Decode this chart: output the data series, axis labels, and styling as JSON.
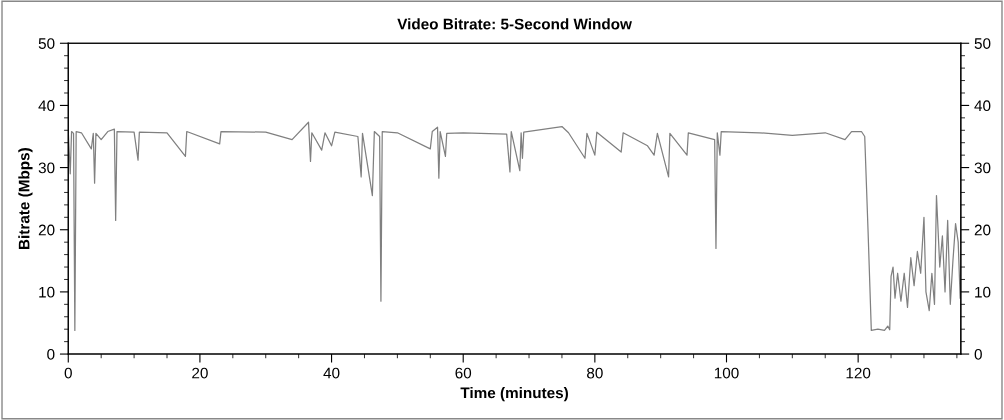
{
  "chart_data": {
    "type": "line",
    "title": "Video Bitrate: 5-Second Window",
    "xlabel": "Time (minutes)",
    "ylabel": "Bitrate (Mbps)",
    "xlim": [
      0,
      135.6
    ],
    "ylim": [
      0,
      50
    ],
    "y2lim": [
      0,
      50
    ],
    "xticks": [
      0,
      {
        "value": 5,
        "label": null
      },
      {
        "value": 10,
        "label": null
      },
      {
        "value": 15,
        "label": null
      },
      20,
      {
        "value": 25,
        "label": null
      },
      {
        "value": 30,
        "label": null
      },
      {
        "value": 35,
        "label": null
      },
      40,
      {
        "value": 45,
        "label": null
      },
      {
        "value": 50,
        "label": null
      },
      {
        "value": 55,
        "label": null
      },
      60,
      {
        "value": 65,
        "label": null
      },
      {
        "value": 70,
        "label": null
      },
      {
        "value": 75,
        "label": null
      },
      80,
      {
        "value": 85,
        "label": null
      },
      {
        "value": 90,
        "label": null
      },
      {
        "value": 95,
        "label": null
      },
      100,
      {
        "value": 105,
        "label": null
      },
      {
        "value": 110,
        "label": null
      },
      {
        "value": 115,
        "label": null
      },
      120,
      {
        "value": 125,
        "label": null
      },
      {
        "value": 130,
        "label": null
      },
      {
        "value": 135,
        "label": null
      }
    ],
    "yticks": [
      0,
      {
        "value": 2,
        "label": null
      },
      {
        "value": 4,
        "label": null
      },
      {
        "value": 6,
        "label": null
      },
      {
        "value": 8,
        "label": null
      },
      10,
      {
        "value": 12,
        "label": null
      },
      {
        "value": 14,
        "label": null
      },
      {
        "value": 16,
        "label": null
      },
      {
        "value": 18,
        "label": null
      },
      20,
      {
        "value": 22,
        "label": null
      },
      {
        "value": 24,
        "label": null
      },
      {
        "value": 26,
        "label": null
      },
      {
        "value": 28,
        "label": null
      },
      30,
      {
        "value": 32,
        "label": null
      },
      {
        "value": 34,
        "label": null
      },
      {
        "value": 36,
        "label": null
      },
      {
        "value": 38,
        "label": null
      },
      40,
      {
        "value": 42,
        "label": null
      },
      {
        "value": 44,
        "label": null
      },
      {
        "value": 46,
        "label": null
      },
      {
        "value": 48,
        "label": null
      },
      50
    ],
    "y2ticks": [
      0,
      {
        "value": 2,
        "label": null
      },
      {
        "value": 4,
        "label": null
      },
      {
        "value": 6,
        "label": null
      },
      {
        "value": 8,
        "label": null
      },
      10,
      {
        "value": 12,
        "label": null
      },
      {
        "value": 14,
        "label": null
      },
      {
        "value": 16,
        "label": null
      },
      {
        "value": 18,
        "label": null
      },
      20,
      {
        "value": 22,
        "label": null
      },
      {
        "value": 24,
        "label": null
      },
      {
        "value": 26,
        "label": null
      },
      {
        "value": 28,
        "label": null
      },
      30,
      {
        "value": 32,
        "label": null
      },
      {
        "value": 34,
        "label": null
      },
      {
        "value": 36,
        "label": null
      },
      {
        "value": 38,
        "label": null
      },
      40,
      {
        "value": 42,
        "label": null
      },
      {
        "value": 44,
        "label": null
      },
      {
        "value": 46,
        "label": null
      },
      {
        "value": 48,
        "label": null
      },
      50
    ],
    "grid": false,
    "marker": "none",
    "line_style": "solid",
    "series": [
      {
        "color": "#808080",
        "x": [
          0,
          0.3,
          0.5,
          0.8,
          1.0,
          1.2,
          2,
          3.5,
          3.8,
          4.0,
          4.2,
          5,
          6,
          7.0,
          7.2,
          7.4,
          10,
          10.6,
          10.8,
          15,
          17.8,
          18,
          23,
          23.2,
          30,
          34,
          36.5,
          36.8,
          37,
          38.5,
          39,
          40,
          40.5,
          44,
          44.5,
          44.7,
          46.2,
          46.5,
          47.3,
          47.5,
          47.7,
          50,
          55,
          55.3,
          56.1,
          56.3,
          56.5,
          57.3,
          57.5,
          60,
          66.6,
          67.1,
          67.3,
          68.6,
          68.8,
          69,
          69.2,
          75,
          76,
          78.5,
          78.8,
          80,
          80.3,
          84,
          84.3,
          88,
          89,
          89.5,
          91.2,
          91.4,
          94,
          94.2,
          98.2,
          98.4,
          98.6,
          99,
          99.2,
          105,
          110,
          115,
          118,
          119,
          120.5,
          121,
          121.5,
          122,
          123,
          124,
          124.5,
          124.8,
          125,
          125.3,
          125.6,
          126,
          126.5,
          127,
          127.5,
          128,
          128.5,
          129,
          129.5,
          130,
          130.3,
          130.8,
          131.2,
          131.6,
          131.9,
          132.4,
          132.8,
          133.2,
          133.6,
          134,
          134.4,
          134.8,
          135.2,
          135.5
        ],
        "values": [
          35.8,
          29,
          35.8,
          35.5,
          3.8,
          35.8,
          35.6,
          33,
          35.5,
          27.5,
          35.5,
          34.5,
          35.8,
          36.2,
          21.5,
          35.8,
          35.7,
          31.2,
          35.7,
          35.6,
          31.8,
          35.8,
          33.8,
          35.8,
          35.7,
          34.5,
          37.3,
          31,
          35.6,
          32.8,
          35.6,
          33.5,
          35.7,
          35,
          28.5,
          35.5,
          25.5,
          35.8,
          35,
          8.5,
          35.8,
          35.6,
          33,
          35.8,
          36.5,
          28.3,
          35.8,
          31.8,
          35.5,
          35.6,
          35.4,
          29.3,
          35.8,
          29.5,
          35.6,
          31.5,
          35.7,
          36.6,
          35.6,
          31.5,
          35.5,
          32,
          35.7,
          32.5,
          35.6,
          33.5,
          32,
          35.5,
          28.5,
          35.5,
          32,
          35.6,
          34.5,
          17,
          35.6,
          32,
          35.8,
          35.6,
          35.2,
          35.6,
          34.5,
          35.8,
          35.8,
          35,
          20,
          3.8,
          4,
          3.8,
          4.5,
          3.9,
          12.5,
          14,
          9,
          13,
          8.5,
          13,
          7.5,
          15.5,
          11,
          16.5,
          13,
          22,
          10,
          7,
          13,
          8,
          25.5,
          14,
          19,
          10,
          21.5,
          8,
          15,
          21,
          18,
          9
        ]
      }
    ]
  }
}
